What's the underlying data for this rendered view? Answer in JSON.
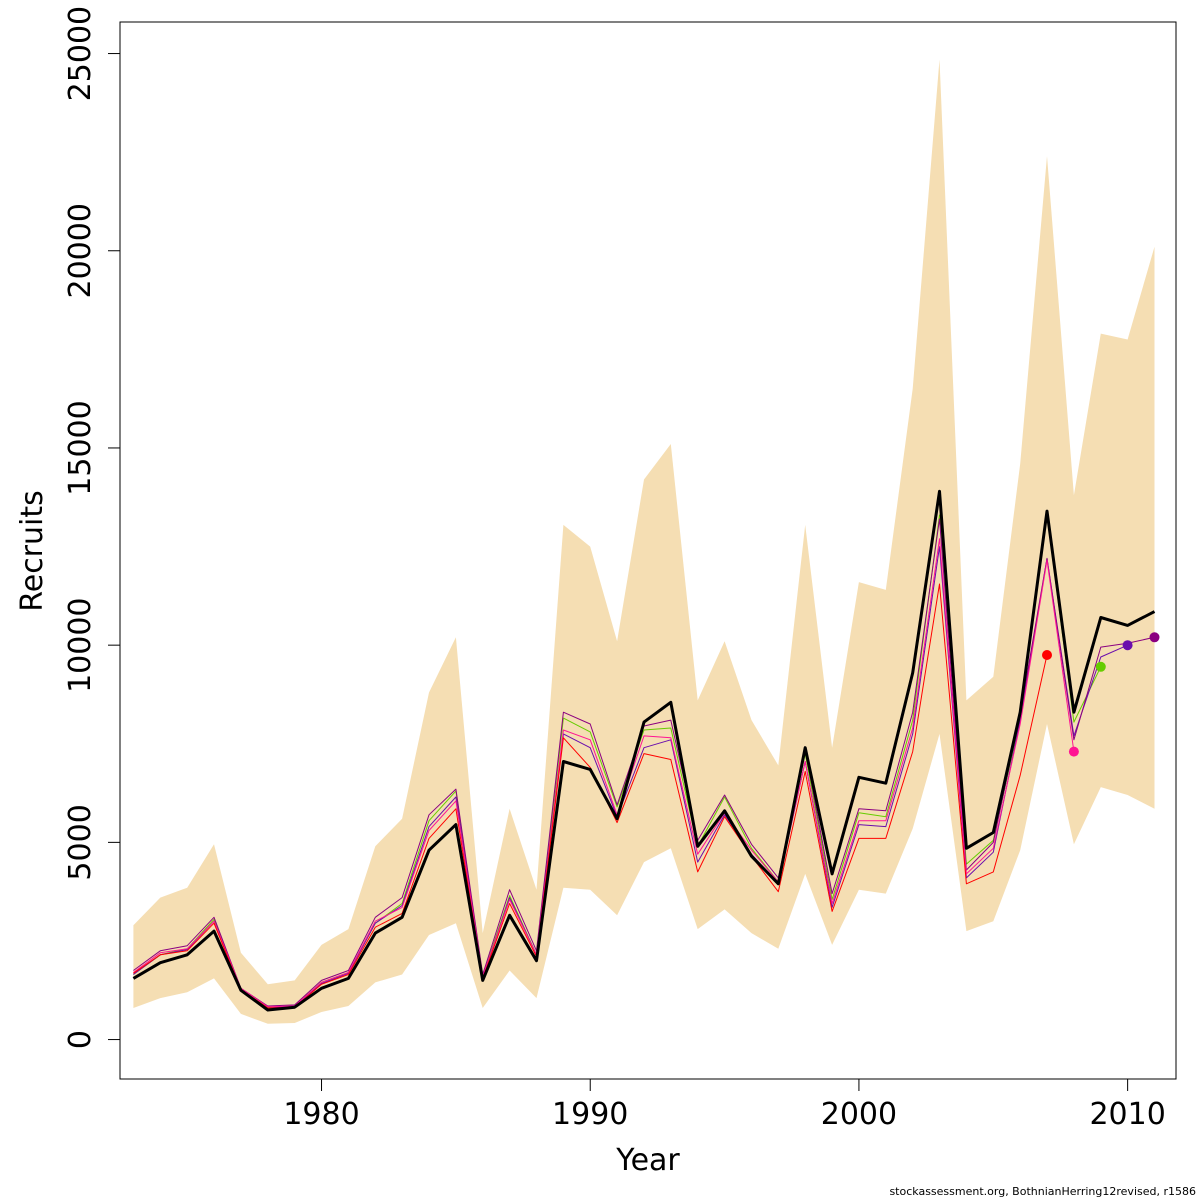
{
  "chart_data": {
    "type": "line",
    "title": "",
    "xlabel": "Year",
    "ylabel": "Recruits",
    "xlim": [
      1972.5,
      2011.8
    ],
    "ylim": [
      -1000,
      25800
    ],
    "xticks": [
      1980,
      1990,
      2000,
      2010
    ],
    "yticks": [
      0,
      5000,
      10000,
      15000,
      20000,
      25000
    ],
    "grid": false,
    "band_color": "#f5deb3",
    "years": [
      1973,
      1974,
      1975,
      1976,
      1977,
      1978,
      1979,
      1980,
      1981,
      1982,
      1983,
      1984,
      1985,
      1986,
      1987,
      1988,
      1989,
      1990,
      1991,
      1992,
      1993,
      1994,
      1995,
      1996,
      1997,
      1998,
      1999,
      2000,
      2001,
      2002,
      2003,
      2004,
      2005,
      2006,
      2007,
      2008,
      2009,
      2010,
      2011
    ],
    "band_upper": [
      2900,
      3600,
      3850,
      4950,
      2200,
      1400,
      1500,
      2400,
      2800,
      4900,
      5600,
      8800,
      10200,
      2700,
      5850,
      3800,
      13050,
      12500,
      10100,
      14200,
      15100,
      8600,
      10100,
      8100,
      6950,
      13050,
      7400,
      11600,
      11400,
      16500,
      24850,
      8600,
      9200,
      14600,
      22400,
      13800,
      17900,
      17750,
      20100
    ],
    "band_lower": [
      800,
      1050,
      1200,
      1550,
      650,
      400,
      420,
      700,
      850,
      1450,
      1650,
      2650,
      2950,
      800,
      1750,
      1050,
      3850,
      3800,
      3150,
      4500,
      4850,
      2800,
      3300,
      2700,
      2300,
      4200,
      2400,
      3800,
      3700,
      5350,
      7750,
      2750,
      3000,
      4800,
      8000,
      4950,
      6400,
      6200,
      5850
    ],
    "series": [
      {
        "color": "#000000",
        "width": 3,
        "values": [
          1550,
          1950,
          2150,
          2750,
          1250,
          750,
          820,
          1300,
          1550,
          2700,
          3100,
          4800,
          5450,
          1500,
          3150,
          2000,
          7050,
          6850,
          5600,
          8050,
          8550,
          4900,
          5800,
          4650,
          3950,
          7400,
          4200,
          6650,
          6500,
          9300,
          13900,
          4850,
          5250,
          8300,
          13400,
          8300,
          10700,
          10500,
          10850
        ]
      },
      {
        "color": "#66cc00",
        "width": 1,
        "values": [
          1650,
          2150,
          2300,
          3050,
          1250,
          820,
          850,
          1450,
          1700,
          2950,
          3450,
          5550,
          6300,
          1600,
          3650,
          2150,
          8150,
          7800,
          5900,
          7850,
          7900,
          4900,
          6150,
          4850,
          4000,
          7250,
          3550,
          5750,
          5650,
          8100,
          13300,
          4450,
          5050,
          8150,
          13300,
          8050,
          9450
        ]
      },
      {
        "color": "#6a0dad",
        "width": 1,
        "values": [
          1650,
          2150,
          2280,
          3000,
          1240,
          800,
          850,
          1420,
          1680,
          2950,
          3400,
          5400,
          6150,
          1550,
          3600,
          2150,
          7750,
          7400,
          5650,
          7400,
          7600,
          4500,
          5700,
          4700,
          3950,
          7050,
          3350,
          5450,
          5400,
          7750,
          12500,
          4100,
          4750,
          8100,
          12200,
          7700,
          9700,
          10000
        ]
      },
      {
        "color": "#8b0080",
        "width": 1,
        "values": [
          1750,
          2250,
          2380,
          3100,
          1300,
          850,
          880,
          1500,
          1750,
          3100,
          3600,
          5700,
          6350,
          1650,
          3800,
          2250,
          8300,
          8000,
          5950,
          7950,
          8100,
          5050,
          6200,
          4950,
          4100,
          7350,
          3700,
          5850,
          5800,
          8300,
          13200,
          4300,
          5000,
          8250,
          12200,
          7600,
          9950,
          10050,
          10200
        ]
      },
      {
        "color": "#ff1493",
        "width": 1,
        "values": [
          1700,
          2200,
          2300,
          3000,
          1300,
          830,
          850,
          1450,
          1700,
          3000,
          3350,
          5300,
          6050,
          1600,
          3550,
          2150,
          7850,
          7600,
          5700,
          7700,
          7650,
          4700,
          5750,
          4800,
          4000,
          7050,
          3450,
          5550,
          5550,
          7900,
          12700,
          4200,
          4850,
          8000,
          12150,
          7300
        ]
      },
      {
        "color": "#ff0000",
        "width": 1,
        "values": [
          1680,
          2150,
          2250,
          2950,
          1270,
          800,
          820,
          1400,
          1650,
          2850,
          3200,
          5100,
          5850,
          1550,
          3450,
          2100,
          7650,
          6900,
          5500,
          7250,
          7100,
          4250,
          5650,
          4650,
          3750,
          6800,
          3250,
          5100,
          5100,
          7300,
          11550,
          3950,
          4250,
          6700,
          9750
        ]
      }
    ],
    "endpoints": [
      {
        "year": 2007,
        "value": 9750,
        "color": "#ff0000"
      },
      {
        "year": 2008,
        "value": 7300,
        "color": "#ff1493"
      },
      {
        "year": 2009,
        "value": 9450,
        "color": "#66cc00"
      },
      {
        "year": 2010,
        "value": 10000,
        "color": "#6a0dad"
      },
      {
        "year": 2011,
        "value": 10200,
        "color": "#8b0080"
      }
    ]
  },
  "footer": {
    "credit": "stockassessment.org, BothnianHerring12revised, r1586"
  }
}
